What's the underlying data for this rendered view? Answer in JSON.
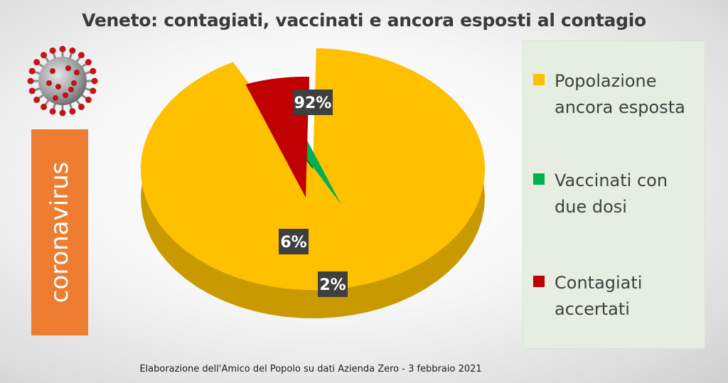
{
  "page": {
    "title": "Veneto: contagiati, vaccinati e ancora esposti al contagio",
    "side_label": "coronavirus",
    "source": "Elaborazione dell'Amico del Popolo su dati Azienda Zero - 3 febbraio 2021"
  },
  "icons": {
    "virus": "coronavirus-icon"
  },
  "colors": {
    "accent": "#ee7d31",
    "legend_bg": "#e5eee1"
  },
  "chart_data": {
    "type": "pie",
    "title": "Veneto: contagiati, vaccinati e ancora esposti al contagio",
    "slices": [
      {
        "label": "Popolazione ancora esposta",
        "value": 92,
        "data_label": "92%",
        "color": "#ffc000",
        "side_color": "#c99900"
      },
      {
        "label": "Vaccinati con due dosi",
        "value": 2,
        "data_label": "2%",
        "color": "#00b050",
        "side_color": "#006b30"
      },
      {
        "label": "Contagiati accertati",
        "value": 6,
        "data_label": "6%",
        "color": "#c00000",
        "side_color": "#5e0505"
      }
    ],
    "legend_position": "right",
    "style": "3d-exploded"
  }
}
